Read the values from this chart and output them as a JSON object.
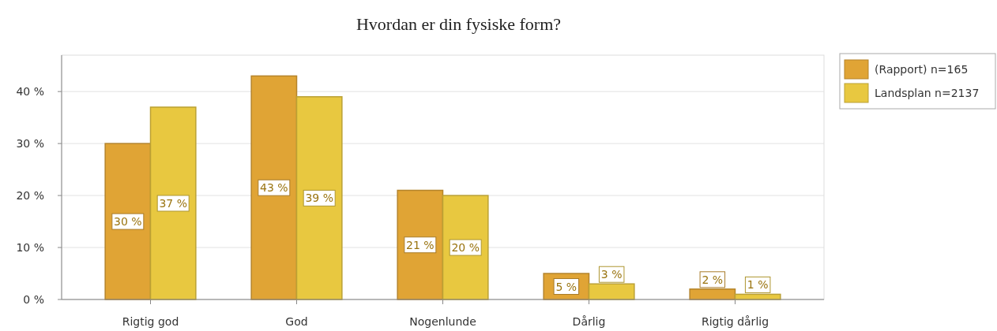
{
  "chart_data": {
    "type": "bar",
    "title": "Hvordan er din fysiske form?",
    "categories": [
      "Rigtig god",
      "God",
      "Nogenlunde",
      "Dårlig",
      "Rigtig dårlig"
    ],
    "series": [
      {
        "name": "(Rapport) n=165",
        "color": "#e0a435",
        "values": [
          30,
          43,
          21,
          5,
          2
        ],
        "value_labels": [
          "30 %",
          "43 %",
          "21 %",
          "5 %",
          "2 %"
        ]
      },
      {
        "name": "Landsplan n=2137",
        "color": "#e8c840",
        "values": [
          37,
          39,
          20,
          3,
          1
        ],
        "value_labels": [
          "37 %",
          "39 %",
          "20 %",
          "3 %",
          "1 %"
        ]
      }
    ],
    "ylim": [
      0,
      47
    ],
    "yticks": [
      {
        "value": 0,
        "label": "0 %"
      },
      {
        "value": 10,
        "label": "10 %"
      },
      {
        "value": 20,
        "label": "20 %"
      },
      {
        "value": 30,
        "label": "30 %"
      },
      {
        "value": 40,
        "label": "40 %"
      }
    ],
    "grid": "y",
    "legend": "right"
  }
}
